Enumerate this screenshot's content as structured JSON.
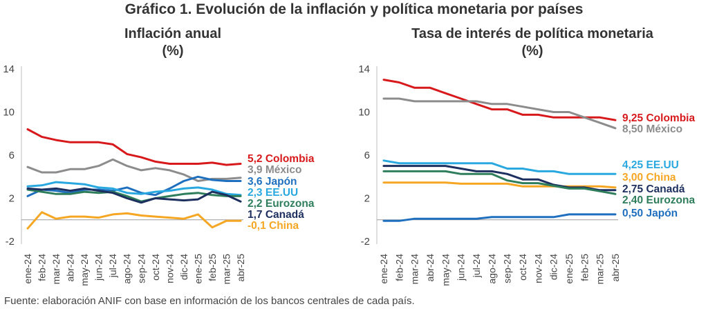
{
  "title": "Gráfico 1. Evolución de la inflación y política monetaria por países",
  "source": "Fuente: elaboración ANIF con base en información de los bancos centrales de cada país.",
  "chart_data": [
    {
      "type": "line",
      "title": "Inflación anual",
      "unit": "(%)",
      "ylim": [
        -2,
        14
      ],
      "yticks": [
        "14",
        "10",
        "6",
        "2",
        "-2"
      ],
      "ytick_values": [
        14,
        10,
        6,
        2,
        -2
      ],
      "x": [
        "ene-24",
        "feb-24",
        "mar-24",
        "abr-24",
        "may-24",
        "jun-24",
        "jul-24",
        "ago-24",
        "sep-24",
        "oct-24",
        "nov-24",
        "dic-24",
        "ene-25",
        "feb-25",
        "mar-25",
        "abr-25"
      ],
      "series": [
        {
          "name": "Colombia",
          "value_label": "5,2",
          "color": "#d7191c",
          "values": [
            8.4,
            7.7,
            7.4,
            7.2,
            7.2,
            7.2,
            7.0,
            6.1,
            5.8,
            5.4,
            5.2,
            5.2,
            5.2,
            5.3,
            5.1,
            5.2
          ]
        },
        {
          "name": "México",
          "value_label": "3,9",
          "color": "#8c8c8c",
          "values": [
            4.9,
            4.4,
            4.4,
            4.7,
            4.7,
            5.0,
            5.6,
            5.0,
            4.6,
            4.8,
            4.6,
            4.2,
            3.6,
            3.8,
            3.8,
            3.9
          ]
        },
        {
          "name": "Japón",
          "value_label": "3,6",
          "color": "#1f6fbf",
          "values": [
            2.2,
            2.8,
            2.7,
            2.5,
            2.8,
            2.8,
            2.7,
            3.0,
            2.5,
            2.3,
            2.9,
            3.6,
            4.0,
            3.7,
            3.6,
            3.6
          ]
        },
        {
          "name": "EE.UU",
          "value_label": "2,3",
          "color": "#29a8e0",
          "values": [
            3.1,
            3.2,
            3.5,
            3.4,
            3.3,
            3.0,
            2.9,
            2.5,
            2.4,
            2.6,
            2.7,
            2.9,
            3.0,
            2.8,
            2.4,
            2.3
          ]
        },
        {
          "name": "Eurozona",
          "value_label": "2,2",
          "color": "#2e7d5b",
          "values": [
            2.8,
            2.6,
            2.4,
            2.4,
            2.6,
            2.5,
            2.6,
            2.2,
            1.7,
            2.0,
            2.2,
            2.4,
            2.5,
            2.3,
            2.2,
            2.2
          ]
        },
        {
          "name": "Canadá",
          "value_label": "1,7",
          "color": "#1d2f5e",
          "values": [
            2.9,
            2.8,
            2.9,
            2.7,
            2.9,
            2.7,
            2.5,
            2.0,
            1.6,
            2.0,
            1.9,
            1.8,
            1.9,
            2.6,
            2.3,
            1.7
          ]
        },
        {
          "name": "China",
          "value_label": "-0,1",
          "color": "#f5a623",
          "values": [
            -0.8,
            0.7,
            0.1,
            0.3,
            0.3,
            0.2,
            0.5,
            0.6,
            0.4,
            0.3,
            0.2,
            0.1,
            0.5,
            -0.7,
            -0.1,
            -0.1
          ]
        }
      ]
    },
    {
      "type": "line",
      "title": "Tasa de interés de política monetaria",
      "unit": "(%)",
      "ylim": [
        -2,
        14
      ],
      "yticks": [
        "14",
        "10",
        "6",
        "2",
        "-2"
      ],
      "ytick_values": [
        14,
        10,
        6,
        2,
        -2
      ],
      "x": [
        "ene-24",
        "feb-24",
        "mar-24",
        "abr-24",
        "may-24",
        "jun-24",
        "jul-24",
        "ago-24",
        "sep-24",
        "oct-24",
        "nov-24",
        "dic-24",
        "ene-25",
        "feb-25",
        "mar-25",
        "abr-25"
      ],
      "series": [
        {
          "name": "Colombia",
          "value_label": "9,25",
          "color": "#d7191c",
          "values": [
            13.0,
            12.75,
            12.25,
            12.25,
            11.75,
            11.25,
            10.75,
            10.25,
            10.25,
            9.75,
            9.75,
            9.5,
            9.5,
            9.5,
            9.5,
            9.25
          ]
        },
        {
          "name": "México",
          "value_label": "8,50",
          "color": "#8c8c8c",
          "values": [
            11.25,
            11.25,
            11.0,
            11.0,
            11.0,
            11.0,
            11.0,
            10.75,
            10.75,
            10.5,
            10.25,
            10.0,
            10.0,
            9.5,
            9.0,
            8.5
          ]
        },
        {
          "name": "EE.UU",
          "value_label": "4,25",
          "color": "#29a8e0",
          "values": [
            5.5,
            5.25,
            5.25,
            5.25,
            5.25,
            5.25,
            5.25,
            5.25,
            4.75,
            4.75,
            4.5,
            4.5,
            4.25,
            4.25,
            4.25,
            4.25
          ]
        },
        {
          "name": "China",
          "value_label": "3,00",
          "color": "#f5a623",
          "values": [
            3.45,
            3.45,
            3.45,
            3.45,
            3.45,
            3.35,
            3.35,
            3.35,
            3.35,
            3.1,
            3.1,
            3.1,
            3.1,
            3.1,
            3.1,
            3.0
          ]
        },
        {
          "name": "Canadá",
          "value_label": "2,75",
          "color": "#1d2f5e",
          "values": [
            5.0,
            5.0,
            5.0,
            5.0,
            5.0,
            4.75,
            4.5,
            4.5,
            4.25,
            3.75,
            3.75,
            3.25,
            3.0,
            3.0,
            2.75,
            2.75
          ]
        },
        {
          "name": "Eurozona",
          "value_label": "2,40",
          "color": "#2e7d5b",
          "values": [
            4.5,
            4.5,
            4.5,
            4.5,
            4.5,
            4.25,
            4.25,
            4.25,
            3.65,
            3.4,
            3.4,
            3.15,
            2.9,
            2.9,
            2.65,
            2.4
          ]
        },
        {
          "name": "Japón",
          "value_label": "0,50",
          "color": "#1f6fbf",
          "values": [
            -0.1,
            -0.1,
            0.1,
            0.1,
            0.1,
            0.1,
            0.1,
            0.25,
            0.25,
            0.25,
            0.25,
            0.25,
            0.5,
            0.5,
            0.5,
            0.5
          ]
        }
      ]
    }
  ]
}
